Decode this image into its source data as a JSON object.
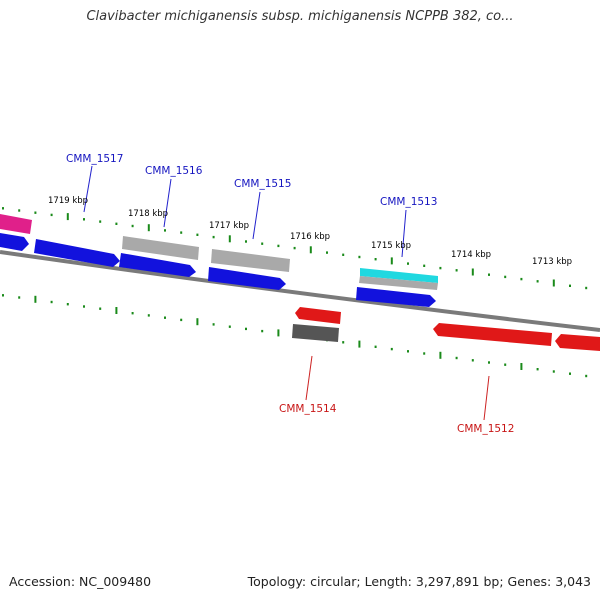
{
  "title": "Clavibacter michiganensis subsp. michiganensis NCPPB 382, co...",
  "footer": {
    "accession": "Accession: NC_009480",
    "topology": "Topology: circular; Length: 3,297,891 bp; Genes: 3,043"
  },
  "colors": {
    "forward_cds": "#1010e0",
    "reverse_cds": "#e01010",
    "pseudo_gray": "#a8a8a8",
    "dark_gray": "#555555",
    "rna_cyan": "#20d8e0",
    "magenta": "#e0208a",
    "tick_green": "#1a8a1a",
    "backbone": "#808080"
  },
  "scale_labels": [
    "1719 kbp",
    "1718 kbp",
    "1717 kbp",
    "1716 kbp",
    "1715 kbp",
    "1714 kbp",
    "1713 kbp"
  ],
  "gene_labels": {
    "forward": [
      "CMM_1517",
      "CMM_1516",
      "CMM_1515",
      "CMM_1513"
    ],
    "reverse": [
      "CMM_1514",
      "CMM_1512"
    ]
  }
}
